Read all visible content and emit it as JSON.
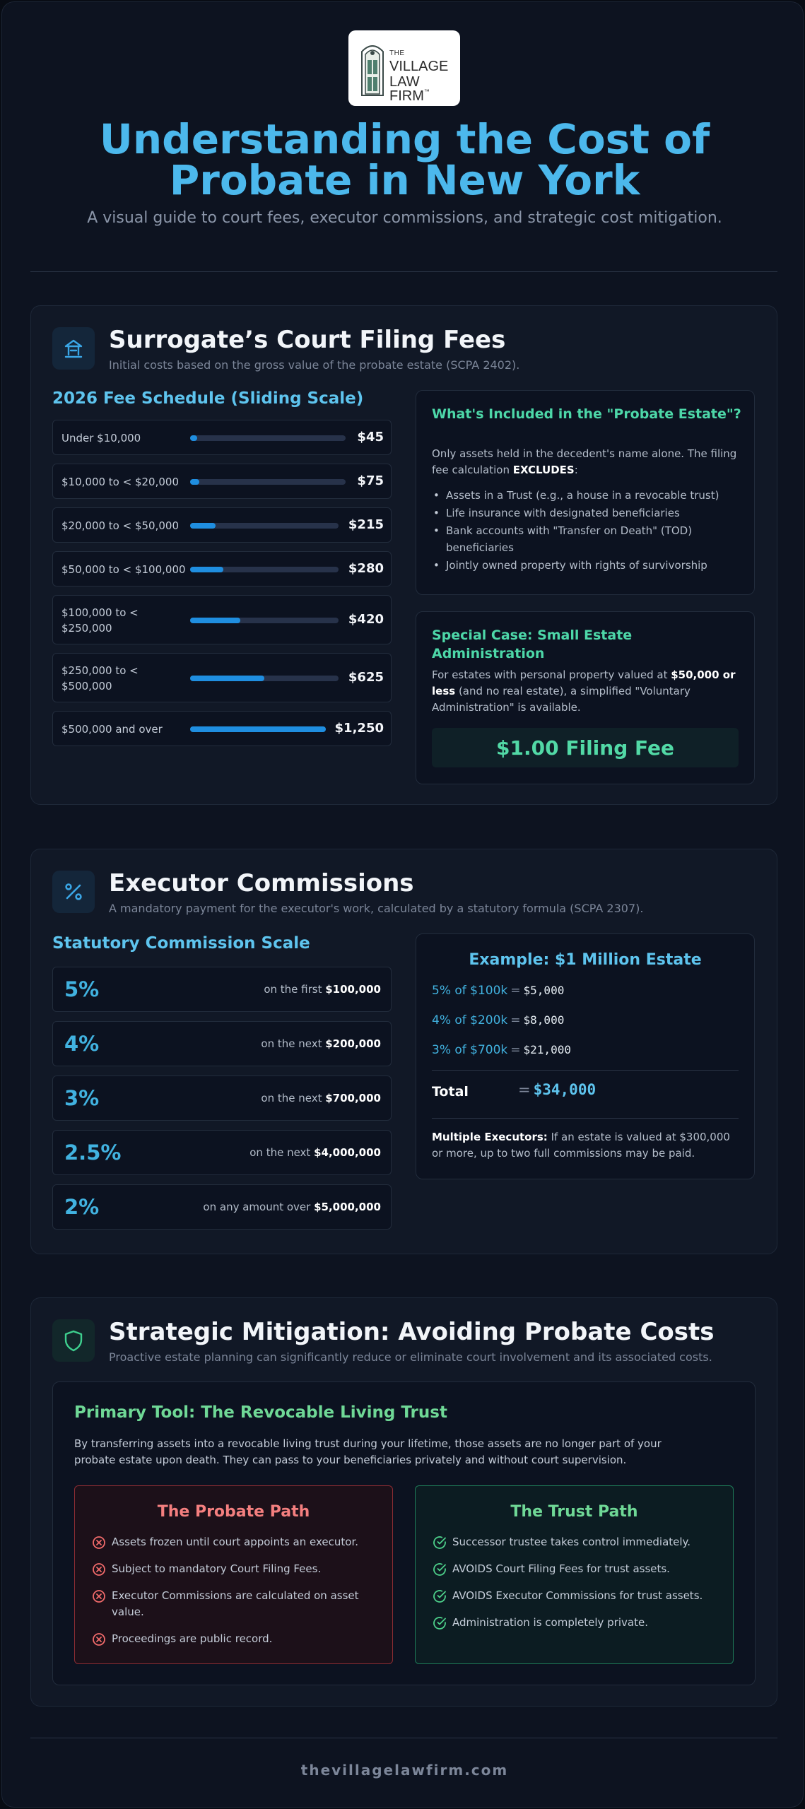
{
  "logo": {
    "line1": "THE",
    "line2": "VILLAGE",
    "line3": "LAW FIRM",
    "tm": "™"
  },
  "header": {
    "title_line1": "Understanding the Cost of",
    "title_line2": "Probate in New York",
    "subtitle": "A visual guide to court fees, executor commissions, and strategic cost mitigation."
  },
  "colors": {
    "accent": "#4cb8ec",
    "green": "#4dd7a8",
    "bar": "#1f8ee0",
    "danger": "#f47f7f"
  },
  "filing": {
    "icon": "courthouse-icon",
    "title": "Surrogate’s Court Filing Fees",
    "desc": "Initial costs based on the gross value of the probate estate (SCPA 2402).",
    "schedule_title": "2026 Fee Schedule (Sliding Scale)",
    "rows": [
      {
        "label": "Under $10,000",
        "value": "$45",
        "fraction": 0.036
      },
      {
        "label": "$10,000 to < $20,000",
        "value": "$75",
        "fraction": 0.06
      },
      {
        "label": "$20,000 to < $50,000",
        "value": "$215",
        "fraction": 0.172
      },
      {
        "label": "$50,000 to < $100,000",
        "value": "$280",
        "fraction": 0.224
      },
      {
        "label": "$100,000 to < $250,000",
        "value": "$420",
        "fraction": 0.336
      },
      {
        "label": "$250,000 to < $500,000",
        "value": "$625",
        "fraction": 0.5
      },
      {
        "label": "$500,000 and over",
        "value": "$1,250",
        "fraction": 1.0
      }
    ],
    "included": {
      "title": "What's Included in the \"Probate Estate\"?",
      "text_a": "Only assets held in the decedent's name alone. The filing fee calculation ",
      "text_b": "EXCLUDES",
      "text_c": ":",
      "bullets": [
        "Assets in a Trust (e.g., a house in a revocable trust)",
        "Life insurance with designated beneficiaries",
        "Bank accounts with \"Transfer on Death\" (TOD) beneficiaries",
        "Jointly owned property with rights of survivorship"
      ]
    },
    "small_estate": {
      "title": "Special Case: Small Estate Administration",
      "text_a": "For estates with personal property valued at ",
      "text_b": "$50,000 or less",
      "text_c": " (and no real estate), a simplified \"Voluntary Administration\" is available.",
      "fee": "$1.00 Filing Fee"
    }
  },
  "commissions": {
    "icon": "percent-icon",
    "title": "Executor Commissions",
    "desc": "A mandatory payment for the executor's work, calculated by a statutory formula (SCPA 2307).",
    "scale_title": "Statutory Commission Scale",
    "rows": [
      {
        "pct": "5%",
        "prefix": "on the first ",
        "amount": "$100,000"
      },
      {
        "pct": "4%",
        "prefix": "on the next ",
        "amount": "$200,000"
      },
      {
        "pct": "3%",
        "prefix": "on the next ",
        "amount": "$700,000"
      },
      {
        "pct": "2.5%",
        "prefix": "on the next ",
        "amount": "$4,000,000"
      },
      {
        "pct": "2%",
        "prefix": "on any amount over ",
        "amount": "$5,000,000"
      }
    ],
    "example": {
      "title": "Example: $1 Million Estate",
      "lines": [
        {
          "k": "5% of $100k",
          "eq": "=",
          "v": "$5,000"
        },
        {
          "k": "4% of $200k",
          "eq": "=",
          "v": "$8,000"
        },
        {
          "k": "3% of $700k",
          "eq": "=",
          "v": "$21,000"
        }
      ],
      "total_label": "Total",
      "total_eq": "=",
      "total_value": "$34,000",
      "note_bold": "Multiple Executors:",
      "note_text": " If an estate is valued at $300,000 or more, up to two full commissions may be paid."
    }
  },
  "strategy": {
    "icon": "shield-icon",
    "title": "Strategic Mitigation: Avoiding Probate Costs",
    "desc": "Proactive estate planning can significantly reduce or eliminate court involvement and its associated costs.",
    "tool_title": "Primary Tool: The Revocable Living Trust",
    "tool_text": "By transferring assets into a revocable living trust during your lifetime, those assets are no longer part of your probate estate upon death. They can pass to your beneficiaries privately and without court supervision.",
    "probate_path": {
      "title": "The Probate Path",
      "items": [
        "Assets frozen until court appoints an executor.",
        "Subject to mandatory Court Filing Fees.",
        "Executor Commissions are calculated on asset value.",
        "Proceedings are public record."
      ]
    },
    "trust_path": {
      "title": "The Trust Path",
      "items": [
        "Successor trustee takes control immediately.",
        "AVOIDS Court Filing Fees for trust assets.",
        "AVOIDS Executor Commissions for trust assets.",
        "Administration is completely private."
      ]
    }
  },
  "footer": {
    "site": "thevillagelawfirm.com"
  }
}
